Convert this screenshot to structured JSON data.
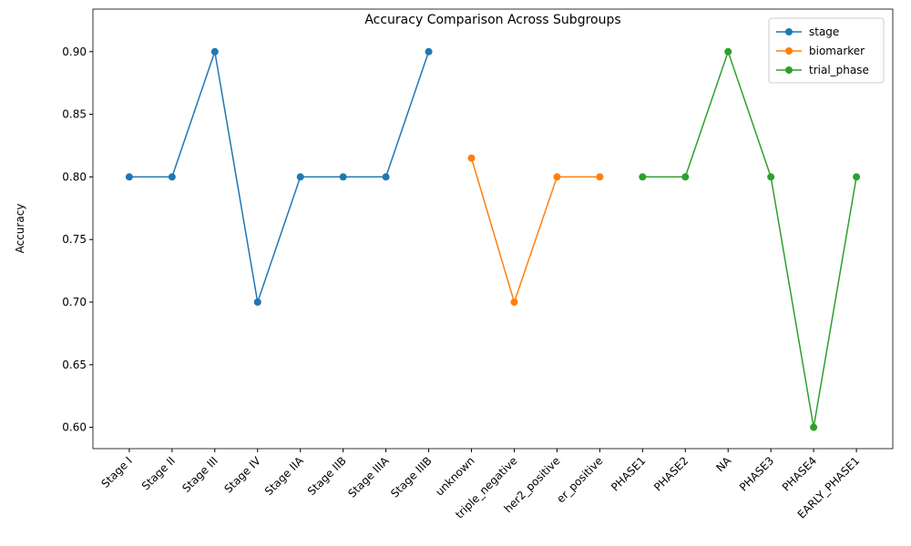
{
  "chart_data": {
    "type": "line",
    "title": "Accuracy Comparison Across Subgroups",
    "y_label": "Accuracy",
    "categories": [
      "Stage I",
      "Stage II",
      "Stage III",
      "Stage IV",
      "Stage IIA",
      "Stage IIB",
      "Stage IIIA",
      "Stage IIIB",
      "unknown",
      "triple_negative",
      "her2_positive",
      "er_positive",
      "PHASE1",
      "PHASE2",
      "NA",
      "PHASE3",
      "PHASE4",
      "EARLY_PHASE1"
    ],
    "series": [
      {
        "name": "stage",
        "color": "#1f77b4",
        "values": [
          0.8,
          0.8,
          0.9,
          0.7,
          0.8,
          0.8,
          0.8,
          0.9,
          null,
          null,
          null,
          null,
          null,
          null,
          null,
          null,
          null,
          null
        ]
      },
      {
        "name": "biomarker",
        "color": "#ff7f0e",
        "values": [
          null,
          null,
          null,
          null,
          null,
          null,
          null,
          null,
          0.815,
          0.7,
          0.8,
          0.8,
          null,
          null,
          null,
          null,
          null,
          null
        ]
      },
      {
        "name": "trial_phase",
        "color": "#2ca02c",
        "values": [
          null,
          null,
          null,
          null,
          null,
          null,
          null,
          null,
          null,
          null,
          null,
          null,
          0.8,
          0.8,
          0.9,
          0.8,
          0.6,
          0.8
        ]
      }
    ],
    "ylim": [
      0.583,
      0.934
    ],
    "yticks": [
      {
        "value": 0.6,
        "label": "0.60"
      },
      {
        "value": 0.65,
        "label": "0.65"
      },
      {
        "value": 0.7,
        "label": "0.70"
      },
      {
        "value": 0.75,
        "label": "0.75"
      },
      {
        "value": 0.8,
        "label": "0.80"
      },
      {
        "value": 0.85,
        "label": "0.85"
      },
      {
        "value": 0.9,
        "label": "0.90"
      }
    ],
    "legend": "upper right",
    "grid": false
  }
}
